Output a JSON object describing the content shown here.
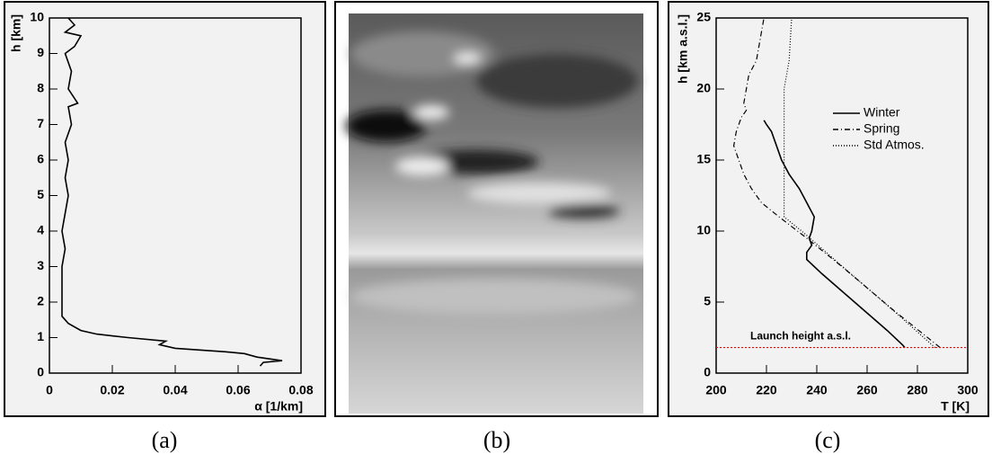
{
  "chart_data": [
    {
      "type": "line",
      "caption": "(a)",
      "x_label": "α [1/km]",
      "y_label": "h [km]",
      "xlim": [
        0,
        0.08
      ],
      "xticks": [
        0,
        0.02,
        0.04,
        0.06,
        0.08
      ],
      "ylim": [
        0,
        10
      ],
      "yticks": [
        0,
        1,
        2,
        3,
        4,
        5,
        6,
        7,
        8,
        9,
        10
      ],
      "color": "#000000",
      "x": [
        0.067,
        0.068,
        0.074,
        0.066,
        0.062,
        0.056,
        0.04,
        0.035,
        0.037,
        0.025,
        0.015,
        0.01,
        0.006,
        0.004,
        0.004,
        0.004,
        0.004,
        0.005,
        0.004,
        0.005,
        0.006,
        0.005,
        0.006,
        0.005,
        0.007,
        0.006,
        0.009,
        0.006,
        0.007,
        0.005,
        0.008,
        0.01,
        0.005,
        0.008,
        0.006
      ],
      "values": [
        0.2,
        0.3,
        0.35,
        0.45,
        0.55,
        0.6,
        0.7,
        0.8,
        0.9,
        1.0,
        1.1,
        1.2,
        1.4,
        1.6,
        2.0,
        2.5,
        3.0,
        3.5,
        4.0,
        4.5,
        5.0,
        5.5,
        6.0,
        6.5,
        7.0,
        7.5,
        7.6,
        8.0,
        8.5,
        9.0,
        9.2,
        9.5,
        9.6,
        9.8,
        10.0
      ]
    },
    {
      "type": "image",
      "caption": "(b)"
    },
    {
      "type": "line",
      "caption": "(c)",
      "x_label": "T [K]",
      "y_label": "h [km a.s.l.]",
      "xlim": [
        200,
        300
      ],
      "xticks": [
        200,
        220,
        240,
        260,
        280,
        300
      ],
      "ylim": [
        0,
        25
      ],
      "yticks": [
        0,
        5,
        10,
        15,
        20,
        25
      ],
      "legend_position": "upper right",
      "annotation": {
        "text": "Launch height a.s.l.",
        "y": 1.8,
        "color": "#ff0000"
      },
      "series": [
        {
          "name": "Winter",
          "color": "#000000",
          "line_style": "solid",
          "x": [
            275,
            274,
            268,
            255,
            242,
            236,
            236,
            238,
            237,
            238,
            239,
            236,
            233,
            229,
            226,
            224,
            222,
            220,
            219
          ],
          "values": [
            1.8,
            2.0,
            3,
            5,
            7,
            8,
            8.5,
            9,
            9.5,
            10,
            11,
            12,
            13,
            14,
            15,
            16,
            17,
            17.5,
            17.8
          ]
        },
        {
          "name": "Spring",
          "color": "#000000",
          "line_style": "dashdot",
          "x": [
            289,
            270,
            250,
            236,
            225,
            218,
            214,
            211,
            209,
            207,
            208,
            210,
            212,
            211,
            212,
            213,
            216,
            217,
            218,
            219
          ],
          "values": [
            1.8,
            4.5,
            7.5,
            9.5,
            11,
            12,
            13,
            14,
            15,
            16,
            17,
            18,
            18.5,
            19,
            20,
            21,
            22,
            23,
            24,
            25
          ]
        },
        {
          "name": "Std Atmos.",
          "color": "#000000",
          "line_style": "dotted",
          "x": [
            287,
            273,
            260,
            247,
            234,
            227,
            227,
            229,
            230
          ],
          "values": [
            1.8,
            4,
            6,
            8,
            10,
            11,
            20,
            22,
            25
          ]
        }
      ]
    }
  ]
}
